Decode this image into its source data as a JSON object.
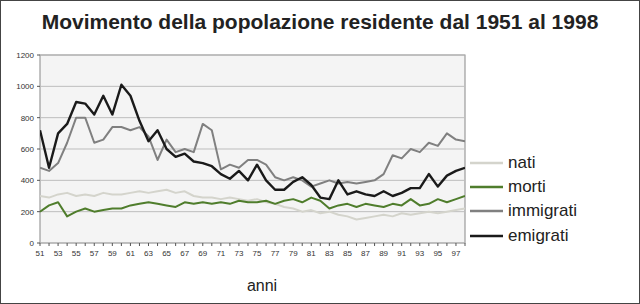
{
  "chart_data": {
    "type": "line",
    "title": "Movimento della popolazione residente dal 1951 al 1998",
    "x_label": "anni",
    "categories": [
      "51",
      null,
      "53",
      null,
      "55",
      null,
      "57",
      null,
      "59",
      null,
      "61",
      null,
      "63",
      null,
      "65",
      null,
      "67",
      null,
      "69",
      null,
      "71",
      null,
      "73",
      null,
      "75",
      null,
      "77",
      null,
      "79",
      null,
      "81",
      null,
      "83",
      null,
      "85",
      null,
      "87",
      null,
      "89",
      null,
      "91",
      null,
      "93",
      null,
      "95",
      null,
      "97",
      null
    ],
    "series": [
      {
        "name": "nati",
        "color": "#d4d4cc",
        "values": [
          300,
          290,
          310,
          320,
          300,
          310,
          300,
          320,
          310,
          310,
          320,
          330,
          320,
          330,
          340,
          320,
          330,
          300,
          290,
          290,
          280,
          290,
          280,
          270,
          280,
          260,
          250,
          230,
          220,
          200,
          210,
          190,
          200,
          180,
          170,
          150,
          160,
          170,
          180,
          170,
          190,
          180,
          190,
          200,
          190,
          200,
          210,
          220
        ]
      },
      {
        "name": "morti",
        "color": "#4f7d2c",
        "values": [
          200,
          240,
          260,
          170,
          200,
          220,
          200,
          210,
          220,
          220,
          240,
          250,
          260,
          250,
          240,
          230,
          260,
          250,
          260,
          250,
          260,
          250,
          270,
          260,
          260,
          270,
          250,
          270,
          280,
          260,
          290,
          270,
          220,
          240,
          250,
          230,
          250,
          240,
          230,
          250,
          240,
          280,
          240,
          250,
          280,
          260,
          280,
          300
        ]
      },
      {
        "name": "immigrati",
        "color": "#808080",
        "values": [
          480,
          460,
          510,
          640,
          800,
          800,
          640,
          660,
          740,
          740,
          720,
          740,
          680,
          530,
          660,
          580,
          600,
          580,
          760,
          720,
          470,
          500,
          480,
          530,
          530,
          500,
          420,
          400,
          420,
          400,
          360,
          380,
          400,
          380,
          390,
          380,
          390,
          400,
          440,
          560,
          540,
          600,
          580,
          640,
          620,
          700,
          660,
          650
        ]
      },
      {
        "name": "emigrati",
        "color": "#1a1a1a",
        "values": [
          720,
          480,
          700,
          760,
          900,
          890,
          820,
          940,
          820,
          1010,
          940,
          780,
          650,
          720,
          600,
          550,
          570,
          520,
          510,
          490,
          440,
          410,
          460,
          400,
          500,
          400,
          340,
          340,
          390,
          420,
          370,
          290,
          280,
          400,
          310,
          330,
          310,
          300,
          330,
          300,
          320,
          350,
          350,
          440,
          360,
          430,
          460,
          480
        ]
      }
    ],
    "ylim": [
      0,
      1200
    ],
    "yticks": [
      0,
      200,
      400,
      600,
      800,
      1000,
      1200
    ],
    "grid": true,
    "legend": "right"
  }
}
